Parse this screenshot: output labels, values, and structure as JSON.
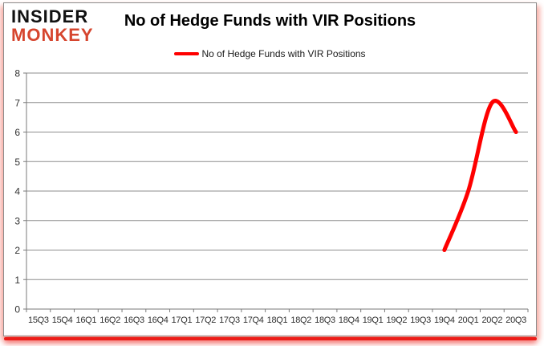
{
  "logo": {
    "line1": "INSIDER",
    "line2": "MONKEY"
  },
  "header": {
    "title": "No of Hedge Funds with VIR Positions"
  },
  "legend": {
    "label": "No of Hedge Funds with VIR Positions"
  },
  "colors": {
    "series_red": "#fe0000",
    "logo_red": "#d6452e",
    "gridline_gray": "#8e8e8e",
    "axis_gray": "#7a7a7a",
    "rule_red": "#ec1c18"
  },
  "chart_data": {
    "type": "line",
    "title": "No of Hedge Funds with VIR Positions",
    "categories": [
      "15Q3",
      "15Q4",
      "16Q1",
      "16Q2",
      "16Q3",
      "16Q4",
      "17Q1",
      "17Q2",
      "17Q3",
      "17Q4",
      "18Q1",
      "18Q2",
      "18Q3",
      "18Q4",
      "19Q1",
      "19Q2",
      "19Q3",
      "19Q4",
      "20Q1",
      "20Q2",
      "20Q3"
    ],
    "series": [
      {
        "name": "No of Hedge Funds with VIR Positions",
        "color": "#fe0000",
        "values": [
          null,
          null,
          null,
          null,
          null,
          null,
          null,
          null,
          null,
          null,
          null,
          null,
          null,
          null,
          null,
          null,
          null,
          2,
          4,
          7,
          6
        ]
      }
    ],
    "xlabel": "",
    "ylabel": "",
    "ylim": [
      0,
      8
    ],
    "yticks": [
      0,
      1,
      2,
      3,
      4,
      5,
      6,
      7,
      8
    ],
    "grid": true,
    "legend_position": "top-center"
  }
}
